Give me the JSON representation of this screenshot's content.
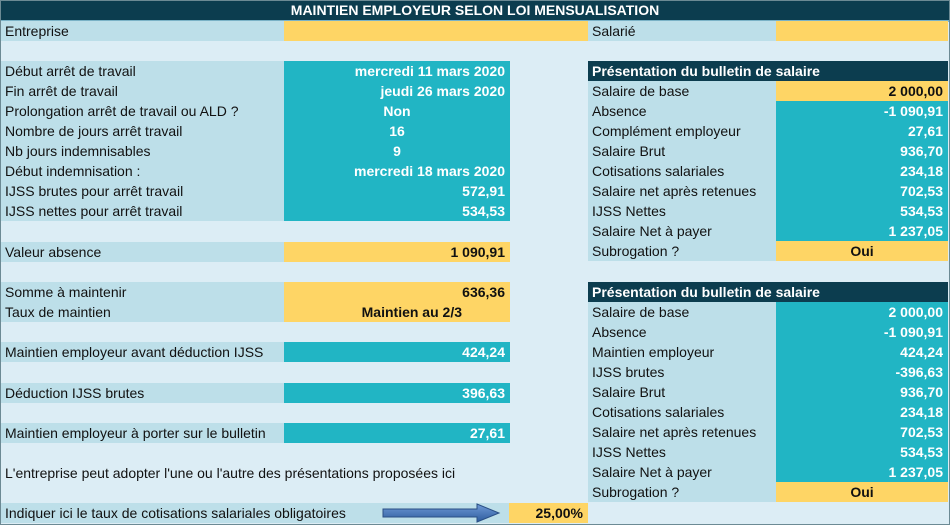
{
  "title": "MAINTIEN EMPLOYEUR SELON LOI MENSUALISATION",
  "entreprise_label": "Entreprise",
  "salarie_label": "Salarié",
  "left": {
    "debut_arret": {
      "label": "Début arrêt de travail",
      "value": "mercredi 11 mars 2020"
    },
    "fin_arret": {
      "label": "Fin arrêt de travail",
      "value": "jeudi 26 mars 2020"
    },
    "prolongation": {
      "label": "Prolongation arrêt de travail ou ALD ?",
      "value": "Non"
    },
    "nb_jours": {
      "label": "Nombre de jours arrêt travail",
      "value": "16"
    },
    "nb_indemnisables": {
      "label": "Nb jours indemnisables",
      "value": "9"
    },
    "debut_indem": {
      "label": "Début indemnisation :",
      "value": "mercredi 18 mars 2020"
    },
    "ijss_brutes": {
      "label": "IJSS brutes pour arrêt travail",
      "value": "572,91"
    },
    "ijss_nettes": {
      "label": "IJSS nettes pour arrêt travail",
      "value": "534,53"
    },
    "valeur_absence": {
      "label": "Valeur absence",
      "value": "1 090,91"
    },
    "somme_maintenir": {
      "label": "Somme à maintenir",
      "value": "636,36"
    },
    "taux_maintien": {
      "label": "Taux de maintien",
      "value": "Maintien au 2/3"
    },
    "maintien_avant": {
      "label": "Maintien employeur avant déduction IJSS",
      "value": "424,24"
    },
    "deduction": {
      "label": "Déduction IJSS brutes",
      "value": "396,63"
    },
    "maintien_bulletin": {
      "label": "Maintien employeur à porter sur le bulletin",
      "value": "27,61"
    },
    "note": "L'entreprise peut adopter l'une ou l'autre des présentations proposées ici",
    "taux_cotis": {
      "label": "Indiquer ici le taux de cotisations salariales obligatoires",
      "value": "25,00%"
    }
  },
  "bulletin1": {
    "header": "Présentation du bulletin de salaire",
    "rows": [
      {
        "label": "Salaire de base",
        "value": "2 000,00"
      },
      {
        "label": "Absence",
        "value": "-1 090,91"
      },
      {
        "label": "Complément employeur",
        "value": "27,61"
      },
      {
        "label": "Salaire Brut",
        "value": "936,70"
      },
      {
        "label": "Cotisations salariales",
        "value": "234,18"
      },
      {
        "label": "Salaire net après retenues",
        "value": "702,53"
      },
      {
        "label": "IJSS Nettes",
        "value": "534,53"
      },
      {
        "label": "Salaire Net à payer",
        "value": "1 237,05"
      },
      {
        "label": "Subrogation ?",
        "value": "Oui"
      }
    ]
  },
  "bulletin2": {
    "header": "Présentation du bulletin de salaire",
    "rows": [
      {
        "label": "Salaire de base",
        "value": "2 000,00"
      },
      {
        "label": "Absence",
        "value": "-1 090,91"
      },
      {
        "label": "Maintien employeur",
        "value": "424,24"
      },
      {
        "label": "IJSS brutes",
        "value": "-396,63"
      },
      {
        "label": "Salaire Brut",
        "value": "936,70"
      },
      {
        "label": "Cotisations salariales",
        "value": "234,18"
      },
      {
        "label": "Salaire net après retenues",
        "value": "702,53"
      },
      {
        "label": "IJSS Nettes",
        "value": "534,53"
      },
      {
        "label": "Salaire Net à payer",
        "value": "1 237,05"
      },
      {
        "label": "Subrogation ?",
        "value": "Oui"
      }
    ]
  },
  "colors": {
    "dark_header": "#0c3d4f",
    "teal": "#21b5c4",
    "yellow": "#fed565",
    "label_bg": "#bddfe9",
    "sheet_bg": "#dcedf5",
    "arrow": "#3d6fb0"
  },
  "icons": {
    "arrow": "right-arrow-icon"
  }
}
